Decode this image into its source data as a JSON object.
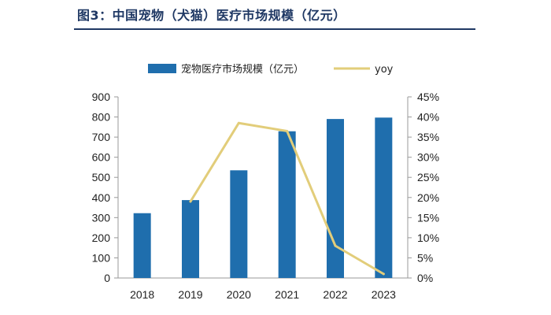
{
  "figure": {
    "title": "图3：中国宠物（犬猫）医疗市场规模（亿元）"
  },
  "chart_data": {
    "type": "bar",
    "categories": [
      "2018",
      "2019",
      "2020",
      "2021",
      "2022",
      "2023"
    ],
    "series": [
      {
        "name": "宠物医疗市场规模（亿元）",
        "kind": "bar",
        "axis": "left",
        "color": "#1f6ead",
        "values": [
          322,
          387,
          535,
          729,
          790,
          797
        ]
      },
      {
        "name": "yoy",
        "kind": "line",
        "axis": "right",
        "color": "#e2cd7a",
        "values": [
          null,
          0.19,
          0.385,
          0.365,
          0.08,
          0.01
        ]
      }
    ],
    "ylim_left": [
      0,
      900
    ],
    "yticks_left": [
      "0",
      "100",
      "200",
      "300",
      "400",
      "500",
      "600",
      "700",
      "800",
      "900"
    ],
    "ylim_right": [
      0,
      0.45
    ],
    "yticks_right": [
      "0%",
      "5%",
      "10%",
      "15%",
      "20%",
      "25%",
      "30%",
      "35%",
      "40%",
      "45%"
    ],
    "legend_position": "top",
    "grid": false
  }
}
